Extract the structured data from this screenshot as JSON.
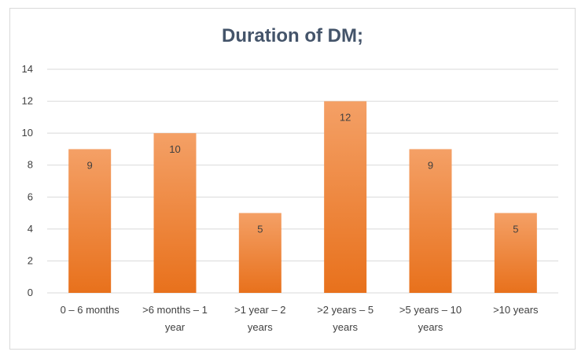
{
  "chart_data": {
    "type": "bar",
    "title": "Duration of DM;",
    "xlabel": "",
    "ylabel": "",
    "categories": [
      [
        "0 – 6 months"
      ],
      [
        ">6 months – 1",
        "year"
      ],
      [
        ">1 year – 2",
        "years"
      ],
      [
        ">2 years – 5",
        "years"
      ],
      [
        ">5 years – 10",
        "years"
      ],
      [
        ">10 years"
      ]
    ],
    "values": [
      9,
      10,
      5,
      12,
      9,
      5
    ],
    "ylim": [
      0,
      14
    ],
    "yticks": [
      0,
      2,
      4,
      6,
      8,
      10,
      12,
      14
    ],
    "grid": true,
    "legend": "none",
    "bar_color_top": "#f4a066",
    "bar_color_bottom": "#e8711c"
  }
}
